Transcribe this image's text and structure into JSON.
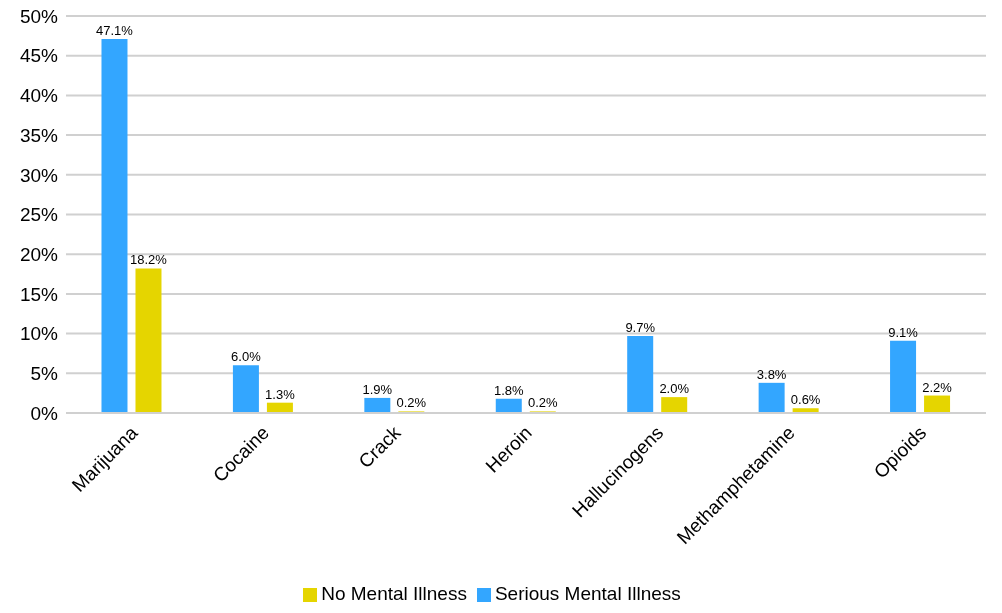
{
  "chart_data": {
    "type": "bar",
    "categories": [
      "Marijuana",
      "Cocaine",
      "Crack",
      "Heroin",
      "Hallucinogens",
      "Methamphetamine",
      "Opioids"
    ],
    "series": [
      {
        "name": "Serious Mental Illness",
        "color": "#33a6ff",
        "values": [
          47.1,
          6.0,
          1.9,
          1.8,
          9.7,
          3.8,
          9.1
        ],
        "value_labels": [
          "47.1%",
          "6.0%",
          "1.9%",
          "1.8%",
          "9.7%",
          "3.8%",
          "9.1%"
        ]
      },
      {
        "name": "No Mental Illness",
        "color": "#e5d500",
        "values": [
          18.2,
          1.3,
          0.2,
          0.2,
          2.0,
          0.6,
          2.2
        ],
        "value_labels": [
          "18.2%",
          "1.3%",
          "0.2%",
          "0.2%",
          "2.0%",
          "0.6%",
          "2.2%"
        ]
      }
    ],
    "ylim": [
      0,
      50
    ],
    "yticks": [
      {
        "value": 0,
        "label": "0%"
      },
      {
        "value": 5,
        "label": "5%"
      },
      {
        "value": 10,
        "label": "10%"
      },
      {
        "value": 15,
        "label": "15%"
      },
      {
        "value": 20,
        "label": "20%"
      },
      {
        "value": 25,
        "label": "25%"
      },
      {
        "value": 30,
        "label": "30%"
      },
      {
        "value": 35,
        "label": "35%"
      },
      {
        "value": 40,
        "label": "40%"
      },
      {
        "value": 45,
        "label": "45%"
      },
      {
        "value": 50,
        "label": "50%"
      }
    ],
    "grid": "y",
    "legend": "bottom"
  }
}
